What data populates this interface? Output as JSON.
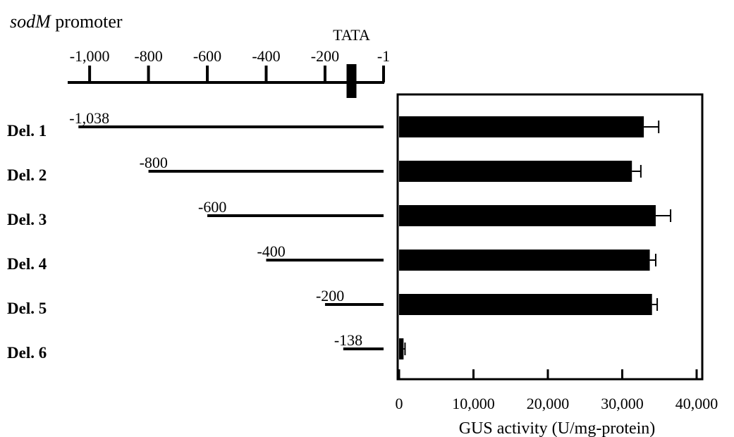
{
  "chart_data": {
    "type": "bar",
    "orientation": "horizontal",
    "title_prefix_italic": "sodM",
    "title_suffix": " promoter",
    "promoter_map": {
      "tata_label": "TATA",
      "tata_position": -110,
      "ticks": [
        -1000,
        -800,
        -600,
        -400,
        -200,
        -1
      ],
      "tick_labels": [
        "-1,000",
        "-800",
        "-600",
        "-400",
        "-200",
        "-1"
      ]
    },
    "constructs": [
      {
        "name": "Del. 1",
        "start": -1038,
        "start_label": "-1,038",
        "end": -1
      },
      {
        "name": "Del. 2",
        "start": -800,
        "start_label": "-800",
        "end": -1
      },
      {
        "name": "Del. 3",
        "start": -600,
        "start_label": "-600",
        "end": -1
      },
      {
        "name": "Del. 4",
        "start": -400,
        "start_label": "-400",
        "end": -1
      },
      {
        "name": "Del. 5",
        "start": -200,
        "start_label": "-200",
        "end": -1
      },
      {
        "name": "Del. 6",
        "start": -138,
        "start_label": "-138",
        "end": -1
      }
    ],
    "categories": [
      "Del. 1",
      "Del. 2",
      "Del. 3",
      "Del. 4",
      "Del. 5",
      "Del. 6"
    ],
    "values": [
      32900,
      31300,
      34500,
      33700,
      34000,
      600
    ],
    "errors": [
      2000,
      1200,
      2000,
      800,
      700,
      200
    ],
    "xlabel": "GUS activity (U/mg-protein)",
    "xlim": [
      0,
      40000
    ],
    "xticks": [
      0,
      10000,
      20000,
      30000,
      40000
    ],
    "xtick_labels": [
      "0",
      "10,000",
      "20,000",
      "30,000",
      "40,000"
    ],
    "bar_color": "#000000"
  }
}
